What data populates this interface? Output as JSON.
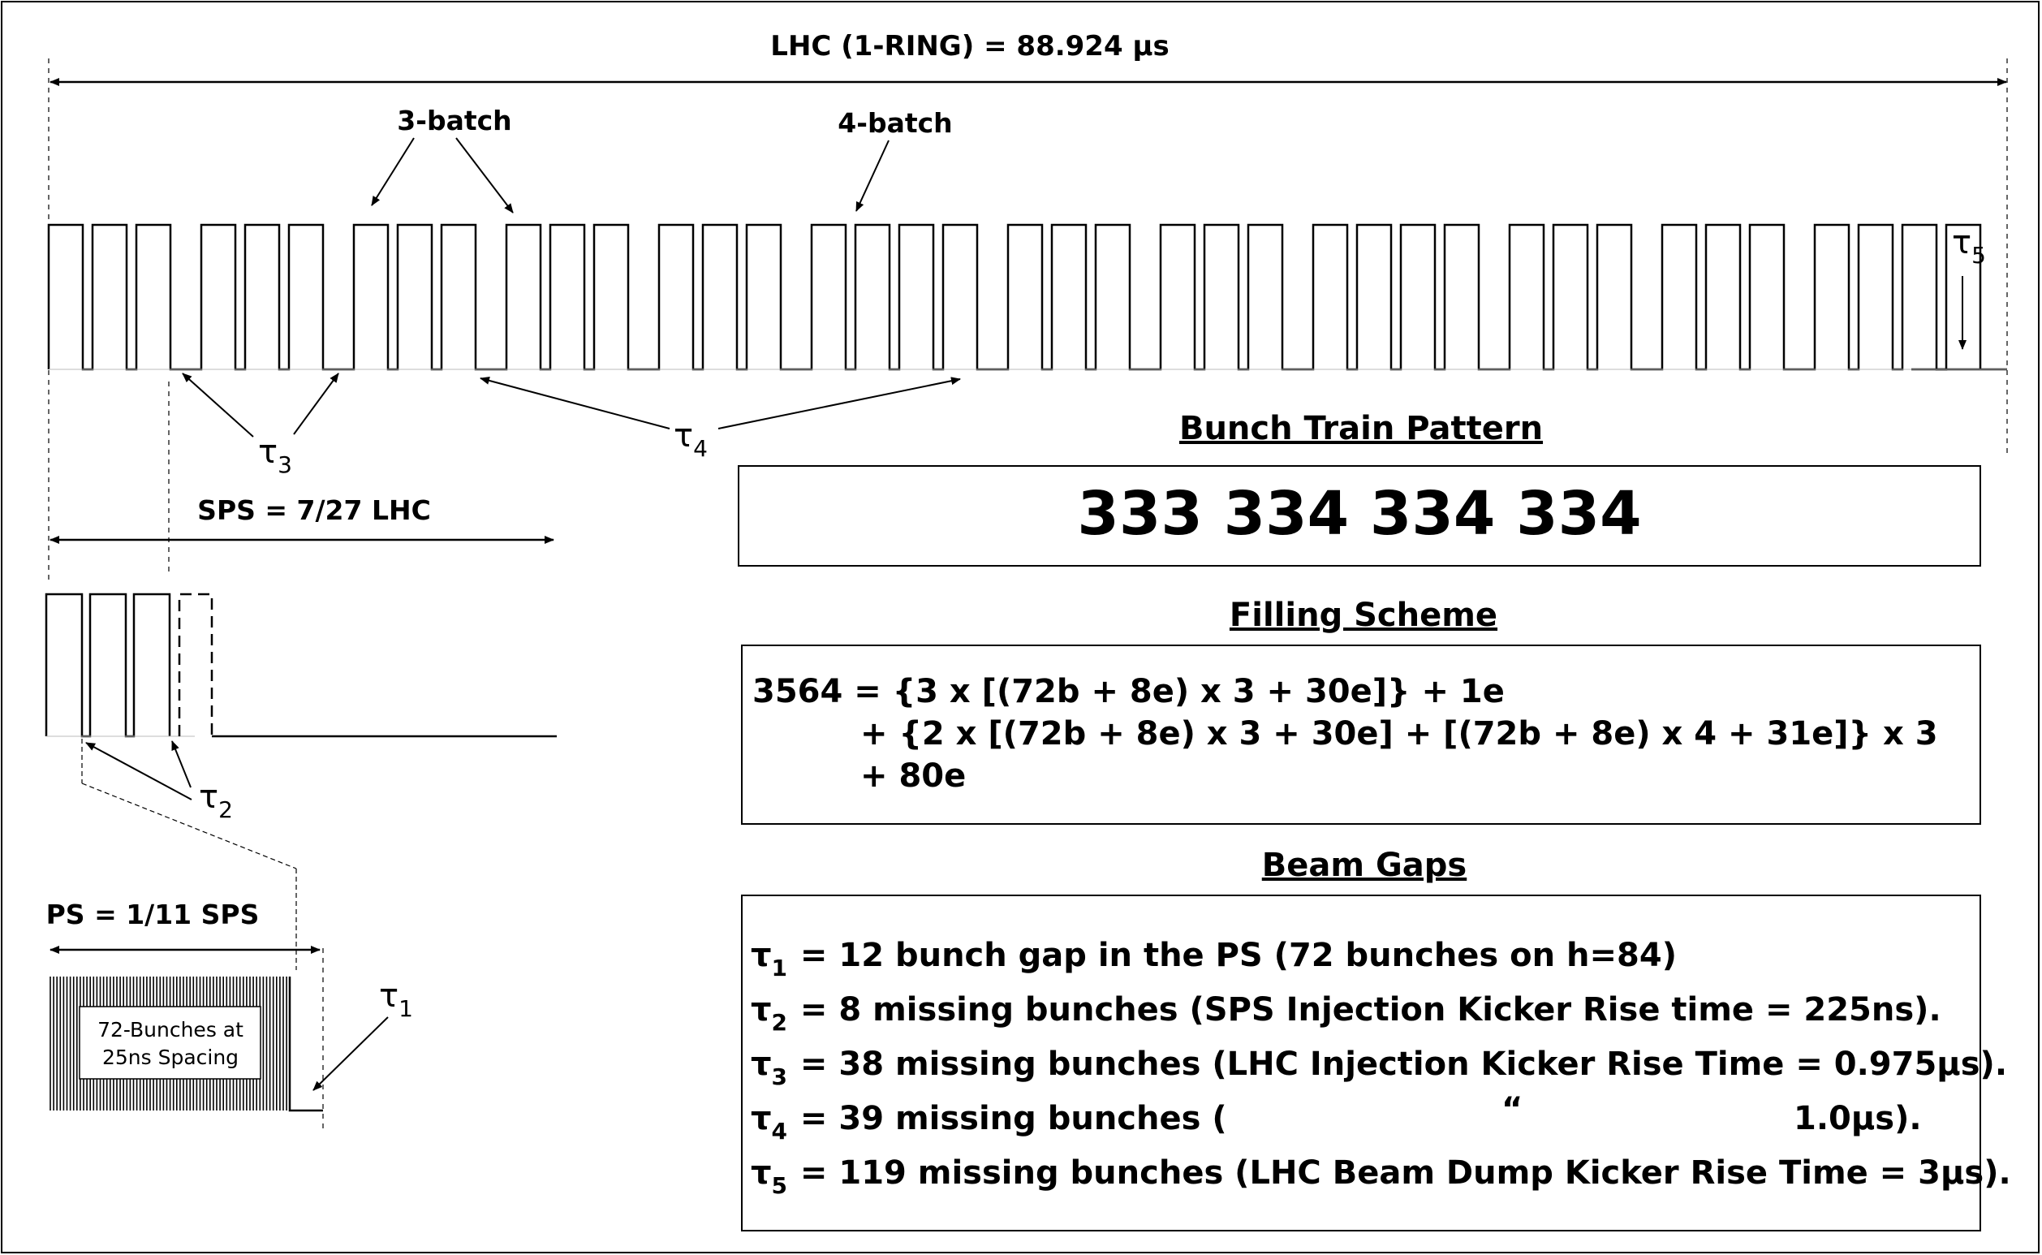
{
  "labels": {
    "lhc": "LHC (1-RING) = 88.924 µs",
    "batch3": "3-batch",
    "batch4": "4-batch",
    "sps": "SPS = 7/27 LHC",
    "ps": "PS = 1/11 SPS",
    "ps_box_line1": "72-Bunches at",
    "ps_box_line2": "25ns Spacing"
  },
  "tau_markers": {
    "t1": {
      "sym": "τ",
      "sub": "1"
    },
    "t2": {
      "sym": "τ",
      "sub": "2"
    },
    "t3": {
      "sym": "τ",
      "sub": "3"
    },
    "t4": {
      "sym": "τ",
      "sub": "4"
    },
    "t5": {
      "sym": "τ",
      "sub": "5"
    }
  },
  "bunch_train": {
    "heading": "Bunch Train Pattern",
    "pattern": "333 334 334 334"
  },
  "filling_scheme": {
    "heading": "Filling Scheme",
    "line1": "3564 = {3 x [(72b + 8e) x 3 + 30e]} + 1e",
    "line2": "+ {2 x [(72b + 8e) x 3 + 30e] + [(72b + 8e) x 4 + 31e]} x 3",
    "line3": "+ 80e"
  },
  "beam_gaps": {
    "heading": "Beam Gaps",
    "items": [
      {
        "sym": "τ",
        "sub": "1",
        "text": " = 12 bunch gap in the PS (72 bunches on h=84)"
      },
      {
        "sym": "τ",
        "sub": "2",
        "text": " = 8 missing bunches (SPS Injection Kicker Rise time = 225ns)."
      },
      {
        "sym": "τ",
        "sub": "3",
        "text": " = 38 missing bunches (LHC Injection Kicker Rise Time = 0.975µs)."
      },
      {
        "sym": "τ",
        "sub": "4",
        "text": " = 39 missing bunches (",
        "ditto": "“",
        "tail": "1.0µs)."
      },
      {
        "sym": "τ",
        "sub": "5",
        "text": " = 119 missing bunches (LHC Beam Dump Kicker Rise Time = 3µs)."
      }
    ]
  }
}
